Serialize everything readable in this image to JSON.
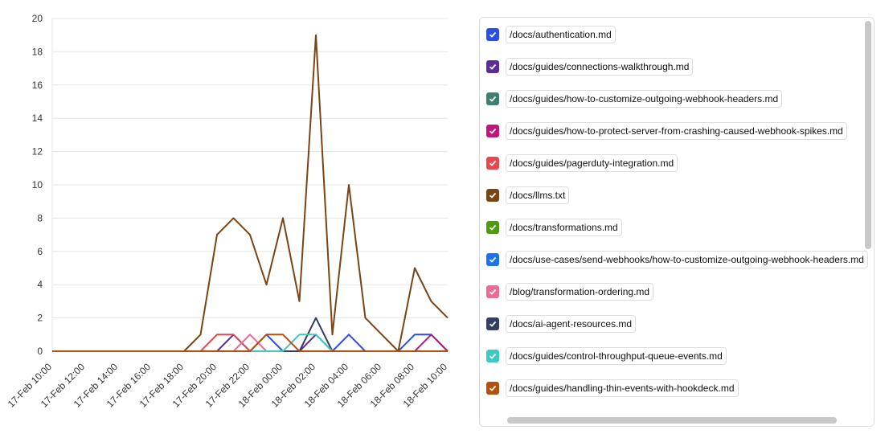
{
  "chart_data": {
    "type": "line",
    "categories": [
      "17-Feb 10:00",
      null,
      "17-Feb 12:00",
      null,
      "17-Feb 14:00",
      null,
      "17-Feb 16:00",
      null,
      "17-Feb 18:00",
      null,
      "17-Feb 20:00",
      null,
      "17-Feb 22:00",
      null,
      "18-Feb 00:00",
      null,
      "18-Feb 02:00",
      null,
      "18-Feb 04:00",
      null,
      "18-Feb 06:00",
      null,
      "18-Feb 08:00",
      null,
      "18-Feb 10:00"
    ],
    "ylim": [
      0,
      20
    ],
    "yticks": [
      0,
      2,
      4,
      6,
      8,
      10,
      12,
      14,
      16,
      18,
      20
    ],
    "grid": true,
    "series": [
      {
        "name": "/docs/authentication.md",
        "color": "#2b4ee6",
        "values": [
          0,
          0,
          0,
          0,
          0,
          0,
          0,
          0,
          0,
          0,
          0,
          0,
          0,
          1,
          0,
          0,
          0,
          0,
          1,
          0,
          0,
          0,
          1,
          1,
          0
        ]
      },
      {
        "name": "/docs/guides/connections-walkthrough.md",
        "color": "#5b2a9b",
        "values": [
          0,
          0,
          0,
          0,
          0,
          0,
          0,
          0,
          0,
          0,
          0,
          1,
          0,
          0,
          0,
          0,
          1,
          0,
          0,
          0,
          0,
          0,
          0,
          0,
          0
        ]
      },
      {
        "name": "/docs/guides/how-to-customize-outgoing-webhook-headers.md",
        "color": "#3f7f72",
        "values": [
          0,
          0,
          0,
          0,
          0,
          0,
          0,
          0,
          0,
          0,
          0,
          0,
          0,
          0,
          0,
          0,
          0,
          0,
          0,
          0,
          0,
          0,
          0,
          0,
          0
        ]
      },
      {
        "name": "/docs/guides/how-to-protect-server-from-crashing-caused-webhook-spikes.md",
        "color": "#c0157a",
        "values": [
          0,
          0,
          0,
          0,
          0,
          0,
          0,
          0,
          0,
          0,
          0,
          0,
          0,
          0,
          0,
          0,
          0,
          0,
          0,
          0,
          0,
          0,
          0,
          1,
          0
        ]
      },
      {
        "name": "/docs/guides/pagerduty-integration.md",
        "color": "#e5484d",
        "values": [
          0,
          0,
          0,
          0,
          0,
          0,
          0,
          0,
          0,
          0,
          1,
          1,
          0,
          0,
          0,
          0,
          0,
          0,
          0,
          0,
          0,
          0,
          0,
          0,
          0
        ]
      },
      {
        "name": "/docs/llms.txt",
        "color": "#7a4415",
        "values": [
          0,
          0,
          0,
          0,
          0,
          0,
          0,
          0,
          0,
          1,
          7,
          8,
          7,
          4,
          8,
          3,
          19,
          1,
          10,
          2,
          1,
          0,
          5,
          3,
          2
        ]
      },
      {
        "name": "/docs/transformations.md",
        "color": "#4f9a10",
        "values": [
          0,
          0,
          0,
          0,
          0,
          0,
          0,
          0,
          0,
          0,
          0,
          0,
          0,
          0,
          0,
          0,
          0,
          0,
          0,
          0,
          0,
          0,
          0,
          0,
          0
        ]
      },
      {
        "name": "/docs/use-cases/send-webhooks/how-to-customize-outgoing-webhook-headers.md",
        "color": "#1a73e8",
        "values": [
          0,
          0,
          0,
          0,
          0,
          0,
          0,
          0,
          0,
          0,
          0,
          0,
          0,
          0,
          0,
          0,
          0,
          0,
          0,
          0,
          0,
          0,
          0,
          0,
          0
        ]
      },
      {
        "name": "/blog/transformation-ordering.md",
        "color": "#ec6a96",
        "values": [
          0,
          0,
          0,
          0,
          0,
          0,
          0,
          0,
          0,
          0,
          0,
          0,
          1,
          0,
          0,
          0,
          0,
          0,
          0,
          0,
          0,
          0,
          0,
          0,
          0
        ]
      },
      {
        "name": "/docs/ai-agent-resources.md",
        "color": "#323e63",
        "values": [
          0,
          0,
          0,
          0,
          0,
          0,
          0,
          0,
          0,
          0,
          0,
          0,
          0,
          0,
          0,
          0,
          2,
          0,
          0,
          0,
          0,
          0,
          0,
          0,
          0
        ]
      },
      {
        "name": "/docs/guides/control-throughput-queue-events.md",
        "color": "#3ec9c3",
        "values": [
          0,
          0,
          0,
          0,
          0,
          0,
          0,
          0,
          0,
          0,
          0,
          0,
          0,
          0,
          0,
          1,
          1,
          0,
          0,
          0,
          0,
          0,
          0,
          0,
          0
        ]
      },
      {
        "name": "/docs/guides/handling-thin-events-with-hookdeck.md",
        "color": "#b3500f",
        "values": [
          0,
          0,
          0,
          0,
          0,
          0,
          0,
          0,
          0,
          0,
          0,
          0,
          0,
          1,
          1,
          0,
          0,
          0,
          0,
          0,
          0,
          0,
          0,
          0,
          0
        ]
      }
    ]
  }
}
